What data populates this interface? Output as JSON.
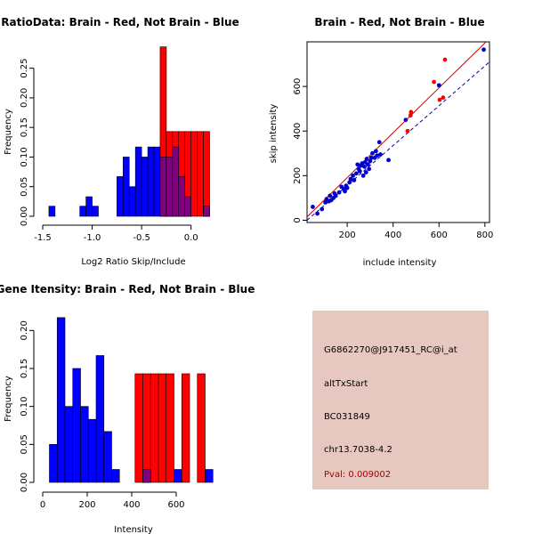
{
  "chart_data": [
    {
      "id": "ratio",
      "type": "histogram",
      "title": "RatioData: Brain - Red, Not Brain - Blue",
      "xlabel": "Log2 Ratio Skip/Include",
      "ylabel": "Frequency",
      "xlim": [
        -1.5,
        0.3
      ],
      "ylim": [
        0,
        0.29
      ],
      "xticks": [
        -1.5,
        -1.0,
        -0.5,
        0.0
      ],
      "xtick_labels": [
        "-1.5",
        "-1.0",
        "-0.5",
        "0.0"
      ],
      "yticks": [
        0.0,
        0.05,
        0.1,
        0.15,
        0.2,
        0.25
      ],
      "ytick_labels": [
        "0.00",
        "0.05",
        "0.10",
        "0.15",
        "0.20",
        "0.25"
      ],
      "bin_width": 0.0625,
      "series": [
        {
          "name": "Not Brain",
          "color": "#0000ff",
          "bins": [
            {
              "x0": -1.4375,
              "v": 0.017
            },
            {
              "x0": -1.375,
              "v": 0.0
            },
            {
              "x0": -1.3125,
              "v": 0.0
            },
            {
              "x0": -1.25,
              "v": 0.0
            },
            {
              "x0": -1.1875,
              "v": 0.0
            },
            {
              "x0": -1.125,
              "v": 0.017
            },
            {
              "x0": -1.0625,
              "v": 0.033
            },
            {
              "x0": -1.0,
              "v": 0.017
            },
            {
              "x0": -0.9375,
              "v": 0.0
            },
            {
              "x0": -0.875,
              "v": 0.0
            },
            {
              "x0": -0.8125,
              "v": 0.0
            },
            {
              "x0": -0.75,
              "v": 0.067
            },
            {
              "x0": -0.6875,
              "v": 0.1
            },
            {
              "x0": -0.625,
              "v": 0.05
            },
            {
              "x0": -0.5625,
              "v": 0.117
            },
            {
              "x0": -0.5,
              "v": 0.1
            },
            {
              "x0": -0.4375,
              "v": 0.117
            },
            {
              "x0": -0.375,
              "v": 0.117
            },
            {
              "x0": -0.3125,
              "v": 0.1
            },
            {
              "x0": -0.25,
              "v": 0.1
            },
            {
              "x0": -0.1875,
              "v": 0.117
            },
            {
              "x0": -0.125,
              "v": 0.067
            },
            {
              "x0": -0.0625,
              "v": 0.033
            },
            {
              "x0": 0.0,
              "v": 0.0
            },
            {
              "x0": 0.0625,
              "v": 0.0
            },
            {
              "x0": 0.125,
              "v": 0.017
            }
          ]
        },
        {
          "name": "Brain",
          "color": "#ff0000",
          "bins": [
            {
              "x0": -0.3125,
              "v": 0.286
            },
            {
              "x0": -0.25,
              "v": 0.143
            },
            {
              "x0": -0.1875,
              "v": 0.143
            },
            {
              "x0": -0.125,
              "v": 0.143
            },
            {
              "x0": -0.0625,
              "v": 0.143
            },
            {
              "x0": 0.0,
              "v": 0.143
            },
            {
              "x0": 0.0625,
              "v": 0.143
            },
            {
              "x0": 0.125,
              "v": 0.143
            }
          ]
        }
      ]
    },
    {
      "id": "scatter",
      "type": "scatter",
      "title": "Brain - Red, Not Brain - Blue",
      "xlabel": "include intensity",
      "ylabel": "skip intensity",
      "xlim": [
        25,
        820
      ],
      "ylim": [
        -10,
        800
      ],
      "xticks": [
        200,
        400,
        600,
        800
      ],
      "xtick_labels": [
        "200",
        "400",
        "600",
        "800"
      ],
      "yticks": [
        0,
        200,
        400,
        600
      ],
      "ytick_labels": [
        "0",
        "200",
        "400",
        "600"
      ],
      "lines": [
        {
          "name": "Brain fit",
          "color": "#cc0000",
          "dashed": false,
          "x": [
            25,
            820
          ],
          "y": [
            15,
            815
          ]
        },
        {
          "name": "Not Brain fit",
          "color": "#0000aa",
          "dashed": true,
          "x": [
            25,
            820
          ],
          "y": [
            0,
            710
          ]
        }
      ],
      "series": [
        {
          "name": "Brain",
          "color": "#ff0000",
          "points": [
            [
              463,
              400
            ],
            [
              476,
              470
            ],
            [
              478,
              485
            ],
            [
              578,
              620
            ],
            [
              603,
              540
            ],
            [
              618,
              550
            ],
            [
              626,
              720
            ]
          ]
        },
        {
          "name": "Not Brain",
          "color": "#0000cc",
          "points": [
            [
              50,
              60
            ],
            [
              70,
              30
            ],
            [
              90,
              50
            ],
            [
              105,
              80
            ],
            [
              110,
              95
            ],
            [
              120,
              85
            ],
            [
              125,
              110
            ],
            [
              130,
              90
            ],
            [
              140,
              100
            ],
            [
              145,
              120
            ],
            [
              150,
              110
            ],
            [
              165,
              125
            ],
            [
              175,
              150
            ],
            [
              185,
              140
            ],
            [
              190,
              130
            ],
            [
              195,
              155
            ],
            [
              200,
              145
            ],
            [
              210,
              170
            ],
            [
              215,
              185
            ],
            [
              225,
              200
            ],
            [
              230,
              180
            ],
            [
              240,
              210
            ],
            [
              245,
              250
            ],
            [
              250,
              230
            ],
            [
              255,
              220
            ],
            [
              260,
              245
            ],
            [
              265,
              255
            ],
            [
              270,
              200
            ],
            [
              275,
              240
            ],
            [
              278,
              260
            ],
            [
              282,
              215
            ],
            [
              285,
              275
            ],
            [
              290,
              250
            ],
            [
              295,
              230
            ],
            [
              300,
              265
            ],
            [
              305,
              280
            ],
            [
              310,
              300
            ],
            [
              320,
              280
            ],
            [
              325,
              310
            ],
            [
              330,
              290
            ],
            [
              340,
              350
            ],
            [
              345,
              295
            ],
            [
              380,
              270
            ],
            [
              455,
              450
            ],
            [
              600,
              605
            ],
            [
              795,
              765
            ]
          ]
        }
      ]
    },
    {
      "id": "intensity",
      "type": "histogram",
      "title": "Gene Itensity: Brain - Red, Not Brain - Blue",
      "xlabel": "Intensity",
      "ylabel": "Frequency",
      "xlim": [
        0,
        800
      ],
      "ylim": [
        0,
        0.225
      ],
      "xticks": [
        0,
        200,
        400,
        600
      ],
      "xtick_labels": [
        "0",
        "200",
        "400",
        "600"
      ],
      "yticks": [
        0.0,
        0.05,
        0.1,
        0.15,
        0.2
      ],
      "ytick_labels": [
        "0.00",
        "0.05",
        "0.10",
        "0.15",
        "0.20"
      ],
      "bin_width": 35,
      "series": [
        {
          "name": "Not Brain",
          "color": "#0000ff",
          "bins": [
            {
              "x0": 30,
              "v": 0.05
            },
            {
              "x0": 65,
              "v": 0.217
            },
            {
              "x0": 100,
              "v": 0.1
            },
            {
              "x0": 135,
              "v": 0.15
            },
            {
              "x0": 170,
              "v": 0.1
            },
            {
              "x0": 205,
              "v": 0.083
            },
            {
              "x0": 240,
              "v": 0.167
            },
            {
              "x0": 275,
              "v": 0.067
            },
            {
              "x0": 310,
              "v": 0.017
            },
            {
              "x0": 345,
              "v": 0.0
            },
            {
              "x0": 380,
              "v": 0.0
            },
            {
              "x0": 415,
              "v": 0.0
            },
            {
              "x0": 450,
              "v": 0.017
            },
            {
              "x0": 485,
              "v": 0.0
            },
            {
              "x0": 520,
              "v": 0.0
            },
            {
              "x0": 555,
              "v": 0.0
            },
            {
              "x0": 590,
              "v": 0.017
            },
            {
              "x0": 625,
              "v": 0.0
            },
            {
              "x0": 660,
              "v": 0.0
            },
            {
              "x0": 695,
              "v": 0.0
            },
            {
              "x0": 730,
              "v": 0.017
            }
          ]
        },
        {
          "name": "Brain",
          "color": "#ff0000",
          "bins": [
            {
              "x0": 415,
              "v": 0.143
            },
            {
              "x0": 450,
              "v": 0.143
            },
            {
              "x0": 485,
              "v": 0.143
            },
            {
              "x0": 520,
              "v": 0.143
            },
            {
              "x0": 555,
              "v": 0.143
            },
            {
              "x0": 625,
              "v": 0.143
            },
            {
              "x0": 695,
              "v": 0.143
            }
          ]
        }
      ]
    }
  ],
  "info_panel": {
    "background": "#e6c8c0",
    "probe_id": "G6862270@J917451_RC@i_at",
    "event_type": "altTxStart",
    "accession": "BC031849",
    "location": "chr13.7038-4.2",
    "pval": "Pval: 0.009002",
    "pval_color": "#aa0000"
  }
}
